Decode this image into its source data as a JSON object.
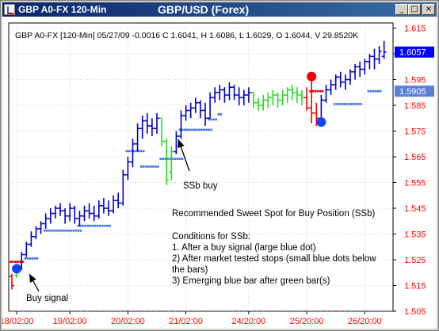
{
  "window": {
    "title": "GBP A0-FX 120-Min",
    "minimize_glyph": "_",
    "restore_glyph": "□",
    "close_glyph": "×"
  },
  "chart_header": "GBP A0-FX [120-Min] 05/27/09  -0.0016 C 1.6041, H 1.6086, L 1.6029, O 1.6044, V 29.8520K",
  "annotations": {
    "ssb_buy": "SSb buy",
    "buy_signal": "Buy signal",
    "notes": [
      "Recommended Sweet Spot for Buy Position (SSb)",
      "",
      "Conditions for SSb:",
      "1. After a buy signal (large blue dot)",
      "2) After market tested stops (small blue dots below",
      "    the bars)",
      "3) Emerging blue bar after green bar(s)"
    ]
  },
  "chart_data": {
    "type": "ohlc",
    "title": "GBP/USD (Forex)",
    "ylim": [
      1.505,
      1.617
    ],
    "y_ticks": [
      1.505,
      1.515,
      1.525,
      1.535,
      1.545,
      1.555,
      1.565,
      1.575,
      1.585,
      1.595,
      1.605,
      1.615
    ],
    "y_tick_labels": [
      "1.505",
      "1.515",
      "1.525",
      "1.535",
      "1.545",
      "1.555",
      "1.565",
      "1.575",
      "1.585",
      "1.595",
      "1.605",
      "1.615"
    ],
    "x_tick_labels": [
      "18/02:00",
      "19/02:00",
      "20/02:00",
      "21/02:00",
      "24/20:00",
      "25/20:00",
      "26/20:00"
    ],
    "x_tick_bar_index": [
      1,
      12,
      24,
      36,
      49,
      61,
      73
    ],
    "price_flags": [
      {
        "label": "1.6057",
        "value": 1.6057,
        "color": "#0000ff"
      },
      {
        "label": "1.5905",
        "value": 1.5905,
        "color": "#5a7fd6"
      }
    ],
    "series": [
      {
        "color_key": {
          "B": "#0000cc",
          "G": "#22dd22",
          "R": "#ee0000"
        },
        "bars": [
          [
            "R",
            1.5195,
            1.5135,
            1.5185,
            1.515
          ],
          [
            "G",
            1.523,
            1.518,
            1.519,
            1.522
          ],
          [
            "B",
            1.528,
            1.521,
            1.522,
            1.527
          ],
          [
            "B",
            1.532,
            1.526,
            1.527,
            1.531
          ],
          [
            "B",
            1.536,
            1.53,
            1.531,
            1.534
          ],
          [
            "B",
            1.538,
            1.533,
            1.534,
            1.537
          ],
          [
            "B",
            1.54,
            1.535,
            1.537,
            1.539
          ],
          [
            "B",
            1.543,
            1.537,
            1.539,
            1.541
          ],
          [
            "B",
            1.545,
            1.539,
            1.541,
            1.543
          ],
          [
            "B",
            1.546,
            1.541,
            1.543,
            1.545
          ],
          [
            "B",
            1.547,
            1.542,
            1.545,
            1.544
          ],
          [
            "B",
            1.545,
            1.539,
            1.544,
            1.542
          ],
          [
            "B",
            1.547,
            1.54,
            1.542,
            1.545
          ],
          [
            "B",
            1.546,
            1.539,
            1.545,
            1.541
          ],
          [
            "B",
            1.544,
            1.538,
            1.541,
            1.542
          ],
          [
            "B",
            1.546,
            1.54,
            1.542,
            1.544
          ],
          [
            "B",
            1.547,
            1.541,
            1.544,
            1.543
          ],
          [
            "B",
            1.546,
            1.54,
            1.543,
            1.542
          ],
          [
            "B",
            1.548,
            1.541,
            1.542,
            1.546
          ],
          [
            "B",
            1.549,
            1.543,
            1.546,
            1.545
          ],
          [
            "B",
            1.548,
            1.542,
            1.545,
            1.544
          ],
          [
            "B",
            1.55,
            1.543,
            1.544,
            1.548
          ],
          [
            "B",
            1.551,
            1.545,
            1.548,
            1.547
          ],
          [
            "B",
            1.56,
            1.546,
            1.547,
            1.558
          ],
          [
            "B",
            1.565,
            1.556,
            1.558,
            1.563
          ],
          [
            "B",
            1.572,
            1.561,
            1.563,
            1.57
          ],
          [
            "B",
            1.578,
            1.567,
            1.57,
            1.576
          ],
          [
            "B",
            1.581,
            1.572,
            1.576,
            1.579
          ],
          [
            "B",
            1.582,
            1.574,
            1.579,
            1.577
          ],
          [
            "B",
            1.58,
            1.573,
            1.577,
            1.576
          ],
          [
            "B",
            1.582,
            1.574,
            1.576,
            1.58
          ],
          [
            "G",
            1.58,
            1.569,
            1.58,
            1.571
          ],
          [
            "G",
            1.572,
            1.554,
            1.571,
            1.556
          ],
          [
            "G",
            1.569,
            1.556,
            1.559,
            1.567
          ],
          [
            "B",
            1.575,
            1.566,
            1.567,
            1.573
          ],
          [
            "B",
            1.583,
            1.572,
            1.573,
            1.581
          ],
          [
            "B",
            1.585,
            1.579,
            1.581,
            1.583
          ],
          [
            "B",
            1.586,
            1.58,
            1.583,
            1.584
          ],
          [
            "B",
            1.588,
            1.582,
            1.584,
            1.586
          ],
          [
            "B",
            1.587,
            1.58,
            1.586,
            1.583
          ],
          [
            "B",
            1.586,
            1.577,
            1.583,
            1.58
          ],
          [
            "B",
            1.59,
            1.58,
            1.58,
            1.588
          ],
          [
            "B",
            1.592,
            1.586,
            1.588,
            1.59
          ],
          [
            "B",
            1.593,
            1.587,
            1.59,
            1.591
          ],
          [
            "B",
            1.592,
            1.586,
            1.591,
            1.589
          ],
          [
            "B",
            1.594,
            1.587,
            1.589,
            1.592
          ],
          [
            "B",
            1.593,
            1.587,
            1.592,
            1.589
          ],
          [
            "B",
            1.592,
            1.585,
            1.589,
            1.588
          ],
          [
            "B",
            1.591,
            1.585,
            1.588,
            1.589
          ],
          [
            "B",
            1.592,
            1.586,
            1.589,
            1.59
          ],
          [
            "G",
            1.59,
            1.584,
            1.59,
            1.586
          ],
          [
            "G",
            1.588,
            1.583,
            1.586,
            1.585
          ],
          [
            "G",
            1.589,
            1.583,
            1.585,
            1.587
          ],
          [
            "G",
            1.59,
            1.584,
            1.587,
            1.588
          ],
          [
            "G",
            1.591,
            1.585,
            1.588,
            1.589
          ],
          [
            "G",
            1.59,
            1.584,
            1.589,
            1.587
          ],
          [
            "G",
            1.591,
            1.585,
            1.587,
            1.589
          ],
          [
            "G",
            1.592,
            1.586,
            1.589,
            1.591
          ],
          [
            "G",
            1.593,
            1.587,
            1.591,
            1.59
          ],
          [
            "G",
            1.592,
            1.586,
            1.59,
            1.589
          ],
          [
            "G",
            1.591,
            1.585,
            1.589,
            1.588
          ],
          [
            "R",
            1.592,
            1.583,
            1.588,
            1.584
          ],
          [
            "R",
            1.596,
            1.578,
            1.584,
            1.582
          ],
          [
            "R",
            1.586,
            1.577,
            1.582,
            1.58
          ],
          [
            "B",
            1.589,
            1.579,
            1.58,
            1.587
          ],
          [
            "B",
            1.593,
            1.586,
            1.587,
            1.591
          ],
          [
            "B",
            1.595,
            1.589,
            1.591,
            1.593
          ],
          [
            "B",
            1.597,
            1.591,
            1.593,
            1.596
          ],
          [
            "B",
            1.598,
            1.592,
            1.596,
            1.594
          ],
          [
            "B",
            1.597,
            1.591,
            1.594,
            1.595
          ],
          [
            "B",
            1.599,
            1.593,
            1.595,
            1.598
          ],
          [
            "B",
            1.601,
            1.595,
            1.598,
            1.6
          ],
          [
            "B",
            1.602,
            1.596,
            1.6,
            1.599
          ],
          [
            "B",
            1.603,
            1.597,
            1.599,
            1.602
          ],
          [
            "B",
            1.605,
            1.599,
            1.602,
            1.604
          ],
          [
            "B",
            1.607,
            1.599,
            1.604,
            1.603
          ],
          [
            "B",
            1.608,
            1.601,
            1.603,
            1.606
          ],
          [
            "B",
            1.61,
            1.603,
            1.604,
            1.6057
          ]
        ]
      }
    ],
    "stop_dots": [
      {
        "color": "#ee0000",
        "from_bar": 0,
        "to_bar": 2,
        "value": 1.5242
      },
      {
        "color": "#4477ee",
        "from_bar": 3,
        "to_bar": 5,
        "value": 1.5255
      },
      {
        "color": "#4477ee",
        "from_bar": 7,
        "to_bar": 14,
        "value": 1.5363
      },
      {
        "color": "#4477ee",
        "from_bar": 14,
        "to_bar": 20,
        "value": 1.5382
      },
      {
        "color": "#4477ee",
        "from_bar": 24,
        "to_bar": 27,
        "value": 1.5672
      },
      {
        "color": "#4477ee",
        "from_bar": 27,
        "to_bar": 30,
        "value": 1.5612
      },
      {
        "color": "#4477ee",
        "from_bar": 31,
        "to_bar": 35,
        "value": 1.5642
      },
      {
        "color": "#4477ee",
        "from_bar": 35,
        "to_bar": 41,
        "value": 1.5755
      },
      {
        "color": "#4477ee",
        "from_bar": 41,
        "to_bar": 42,
        "value": 1.5795
      },
      {
        "color": "#4477ee",
        "from_bar": 43,
        "to_bar": 43,
        "value": 1.5815
      },
      {
        "color": "#ee0000",
        "from_bar": 62,
        "to_bar": 64,
        "value": 1.5905
      },
      {
        "color": "#4477ee",
        "from_bar": 67,
        "to_bar": 72,
        "value": 1.5855
      },
      {
        "color": "#4477ee",
        "from_bar": 74,
        "to_bar": 76,
        "value": 1.5905
      }
    ],
    "signal_dots": [
      {
        "color": "#1144ff",
        "bar": 1,
        "value": 1.5215
      },
      {
        "color": "#ee0000",
        "bar": 62,
        "value": 1.5962
      },
      {
        "color": "#1144ff",
        "bar": 64,
        "value": 1.5785
      }
    ]
  }
}
